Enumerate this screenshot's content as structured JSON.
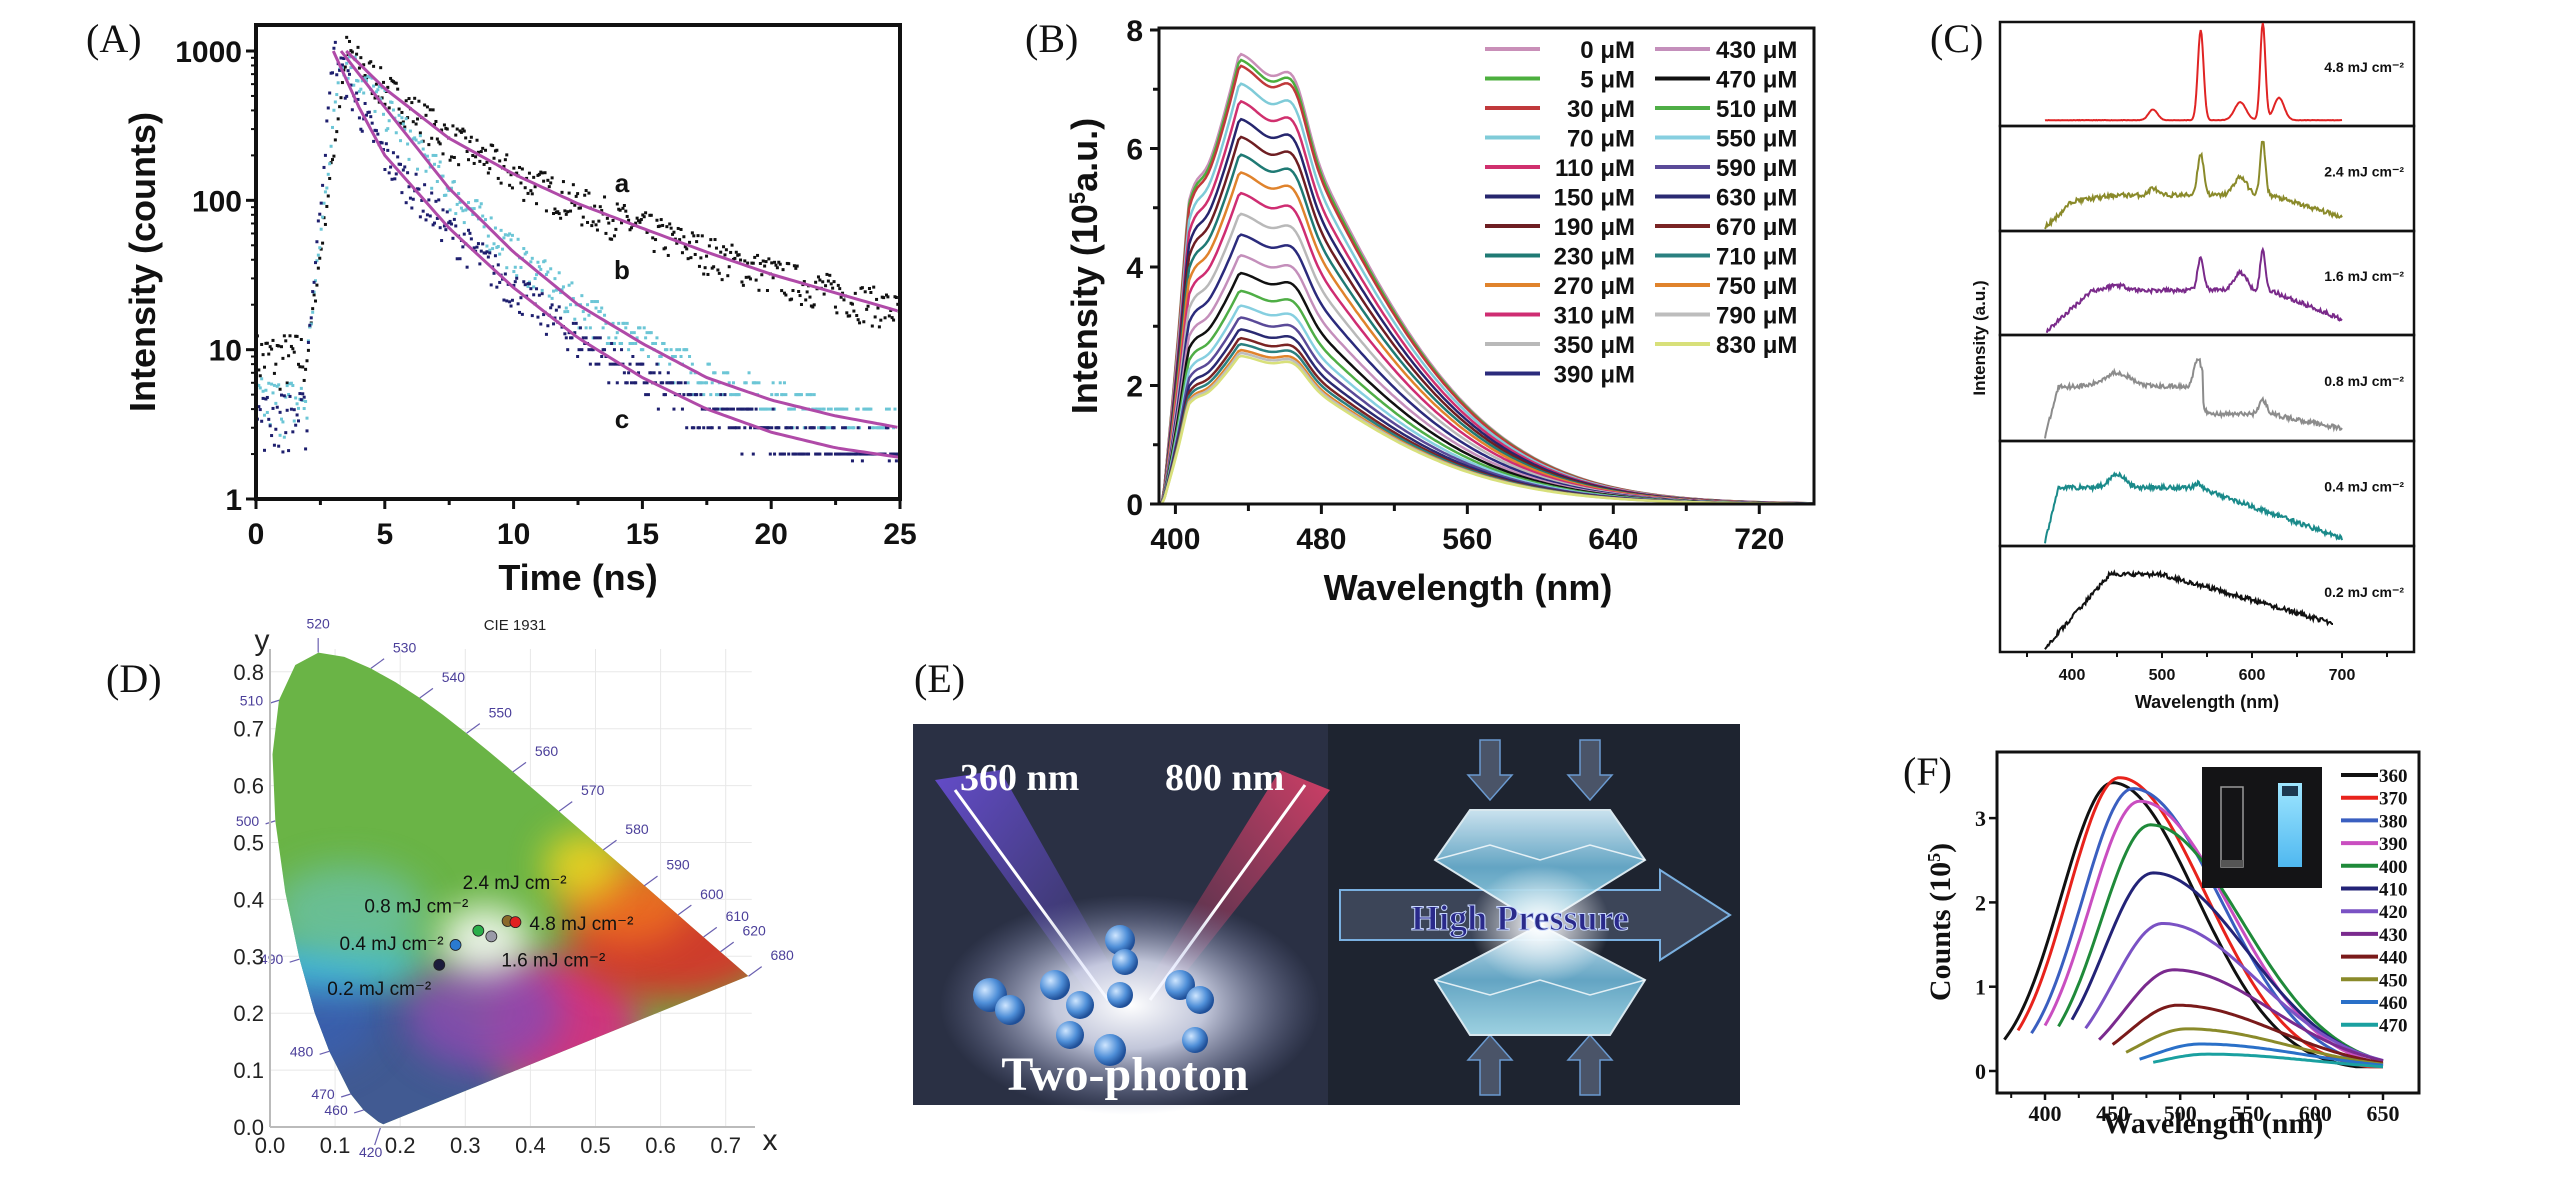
{
  "panels": {
    "A": {
      "label": "(A)"
    },
    "B": {
      "label": "(B)"
    },
    "C": {
      "label": "(C)"
    },
    "D": {
      "label": "(D)"
    },
    "E": {
      "label": "(E)"
    },
    "F": {
      "label": "(F)"
    }
  },
  "illustration_E": {
    "left_beam_label": "360 nm",
    "right_beam_label": "800 nm",
    "left_caption": "Two-photon",
    "right_caption": "High Pressure",
    "beam_colors": {
      "left": "#6a4fd8",
      "right": "#e0406a"
    },
    "background": "#1e2430"
  },
  "chart_data": [
    {
      "id": "A",
      "type": "scatter",
      "title": "",
      "xlabel": "Time (ns)",
      "ylabel": "Intensity (counts)",
      "xlim": [
        0,
        25
      ],
      "ylim": [
        1,
        1000
      ],
      "yscale": "log",
      "xticks": [
        "0",
        "5",
        "10",
        "15",
        "20",
        "25"
      ],
      "yticks": [
        "1",
        "10",
        "100",
        "1000"
      ],
      "series": [
        {
          "name": "a",
          "color": "#111111",
          "fit_color": "#b04aa8",
          "peak_time": 3.5,
          "peak": 1000,
          "fast_tau": 1.6,
          "slow_tau": 6.8,
          "fast_frac": 0.55,
          "baseline": 10,
          "x_fit": [
            3.5,
            5,
            7.5,
            10,
            12.5,
            15,
            17.5,
            20,
            22.5,
            25
          ],
          "y_fit": [
            1000,
            560,
            260,
            150,
            95,
            65,
            45,
            32,
            24,
            18
          ]
        },
        {
          "name": "b",
          "color": "#6cc6d6",
          "fit_color": "#b04aa8",
          "peak_time": 3.3,
          "peak": 1000,
          "x_fit": [
            3.3,
            5,
            7.5,
            10,
            12.5,
            15,
            17.5,
            20,
            22.5,
            25
          ],
          "y_fit": [
            1000,
            420,
            120,
            45,
            20,
            11,
            6.5,
            4.6,
            3.6,
            3.0
          ]
        },
        {
          "name": "c",
          "color": "#1e1f6e",
          "fit_color": "#b04aa8",
          "peak_time": 3.0,
          "peak": 1000,
          "x_fit": [
            3.0,
            4,
            5,
            7.5,
            10,
            12.5,
            15,
            17.5,
            20,
            22.5,
            25
          ],
          "y_fit": [
            1000,
            420,
            200,
            65,
            26,
            12,
            6.5,
            4.0,
            2.8,
            2.2,
            1.9
          ]
        }
      ],
      "annotations": [
        "a",
        "b",
        "c"
      ]
    },
    {
      "id": "B",
      "type": "line",
      "title": "",
      "xlabel": "Wavelength (nm)",
      "ylabel": "Intensity (10⁵a.u.)",
      "ylabel_main": "Intensity (10",
      "ylabel_sup": "5",
      "ylabel_tail": "a.u.)",
      "xlim": [
        391,
        750
      ],
      "ylim": [
        0,
        8
      ],
      "xticks": [
        "400",
        "480",
        "560",
        "640",
        "720"
      ],
      "yticks": [
        "0",
        "2",
        "4",
        "6",
        "8"
      ],
      "legend_position": "top-right",
      "series": [
        {
          "name": "0 μM",
          "color": "#c98fb8",
          "peak": 7.6
        },
        {
          "name": "5 μM",
          "color": "#4caf3e",
          "peak": 7.5
        },
        {
          "name": "30 μM",
          "color": "#c0393b",
          "peak": 7.4
        },
        {
          "name": "70 μM",
          "color": "#7fcbd8",
          "peak": 7.1
        },
        {
          "name": "110 μM",
          "color": "#d0306e",
          "peak": 6.8
        },
        {
          "name": "150 μM",
          "color": "#26266e",
          "peak": 6.5
        },
        {
          "name": "190 μM",
          "color": "#6e1e22",
          "peak": 6.2
        },
        {
          "name": "230 μM",
          "color": "#1f7a74",
          "peak": 5.9
        },
        {
          "name": "270 μM",
          "color": "#e0832c",
          "peak": 5.6
        },
        {
          "name": "310 μM",
          "color": "#cf2d72",
          "peak": 5.25
        },
        {
          "name": "350 μM",
          "color": "#b9b9b9",
          "peak": 4.9
        },
        {
          "name": "390 μM",
          "color": "#2b2b7c",
          "peak": 4.55
        },
        {
          "name": "430 μM",
          "color": "#c48fbb",
          "peak": 4.2
        },
        {
          "name": "470 μM",
          "color": "#111111",
          "peak": 3.9
        },
        {
          "name": "510 μM",
          "color": "#4fae46",
          "peak": 3.6
        },
        {
          "name": "550 μM",
          "color": "#86cfe0",
          "peak": 3.35
        },
        {
          "name": "590 μM",
          "color": "#5a4a98",
          "peak": 3.15
        },
        {
          "name": "630 μM",
          "color": "#2a2a72",
          "peak": 2.95
        },
        {
          "name": "670 μM",
          "color": "#7a2424",
          "peak": 2.8
        },
        {
          "name": "710 μM",
          "color": "#2a8080",
          "peak": 2.7
        },
        {
          "name": "750 μM",
          "color": "#e0832c",
          "peak": 2.6
        },
        {
          "name": "790 μM",
          "color": "#bdbdbd",
          "peak": 2.55
        },
        {
          "name": "830 μM",
          "color": "#d8e07a",
          "peak": 2.5
        }
      ],
      "peak_wavelength": 435,
      "shoulders_nm": [
        410,
        465
      ]
    },
    {
      "id": "C",
      "type": "line",
      "title": "",
      "xlabel": "Wavelength (nm)",
      "ylabel": "Intensity (a.u.)",
      "xlim": [
        320,
        780
      ],
      "xticks": [
        "400",
        "500",
        "600",
        "700"
      ],
      "stacked": true,
      "series": [
        {
          "name": "4.8 mJ cm⁻²",
          "color": "#e02424",
          "x_range": [
            370,
            700
          ],
          "peaks_nm": [
            490,
            543,
            587,
            612,
            630
          ]
        },
        {
          "name": "2.4 mJ cm⁻²",
          "color": "#8a8a2a",
          "x_range": [
            370,
            700
          ],
          "peaks_nm": [
            490,
            543,
            587,
            612
          ]
        },
        {
          "name": "1.6 mJ cm⁻²",
          "color": "#7a2a8a",
          "x_range": [
            372,
            700
          ],
          "peaks_nm": [
            543,
            587,
            612
          ]
        },
        {
          "name": "0.8 mJ cm⁻²",
          "color": "#8c8c8c",
          "x_range": [
            370,
            700
          ],
          "peaks_nm": [
            450,
            543,
            612
          ]
        },
        {
          "name": "0.4 mJ cm⁻²",
          "color": "#1a8a8a",
          "x_range": [
            370,
            700
          ],
          "peaks_nm": [
            400,
            450,
            540
          ]
        },
        {
          "name": "0.2 mJ cm⁻²",
          "color": "#111111",
          "x_range": [
            370,
            690
          ],
          "peaks_nm": [
            440
          ]
        }
      ]
    },
    {
      "id": "D",
      "type": "scatter",
      "title": "CIE 1931",
      "xlabel": "x",
      "ylabel": "y",
      "xlim": [
        0,
        0.75
      ],
      "ylim": [
        0,
        0.85
      ],
      "xticks": [
        "0.0",
        "0.1",
        "0.2",
        "0.3",
        "0.4",
        "0.5",
        "0.6",
        "0.7"
      ],
      "yticks": [
        "0.0",
        "0.1",
        "0.2",
        "0.3",
        "0.4",
        "0.5",
        "0.6",
        "0.7",
        "0.8"
      ],
      "locus_labels": [
        "420",
        "460",
        "470",
        "480",
        "490",
        "500",
        "510",
        "520",
        "530",
        "540",
        "550",
        "560",
        "570",
        "580",
        "590",
        "600",
        "610",
        "620",
        "680"
      ],
      "points": [
        {
          "label": "0.2 mJ cm⁻²",
          "x": 0.26,
          "y": 0.285,
          "color": "#1c1c3c"
        },
        {
          "label": "0.4 mJ cm⁻²",
          "x": 0.285,
          "y": 0.32,
          "color": "#2a7ad0"
        },
        {
          "label": "0.8 mJ cm⁻²",
          "x": 0.32,
          "y": 0.345,
          "color": "#2aae4a"
        },
        {
          "label": "1.6 mJ cm⁻²",
          "x": 0.34,
          "y": 0.335,
          "color": "#9a9aa8"
        },
        {
          "label": "2.4 mJ cm⁻²",
          "x": 0.365,
          "y": 0.362,
          "color": "#8a6a2a"
        },
        {
          "label": "4.8 mJ cm⁻²",
          "x": 0.377,
          "y": 0.36,
          "color": "#e02020"
        }
      ]
    },
    {
      "id": "F",
      "type": "line",
      "title": "",
      "xlabel": "Wavelength (nm)",
      "ylabel": "Counts (10⁵)",
      "ylabel_main": "Counts (10",
      "ylabel_sup": "5",
      "ylabel_tail": ")",
      "xlim": [
        365,
        675
      ],
      "ylim": [
        -0.3,
        3.7
      ],
      "xticks": [
        "400",
        "450",
        "500",
        "550",
        "600",
        "650"
      ],
      "yticks": [
        "0",
        "1",
        "2",
        "3"
      ],
      "legend_position": "top-right",
      "series": [
        {
          "name": "360",
          "color": "#111111",
          "start": 370,
          "peak_nm": 450,
          "peak": 3.42
        },
        {
          "name": "370",
          "color": "#e8231c",
          "start": 380,
          "peak_nm": 455,
          "peak": 3.48
        },
        {
          "name": "380",
          "color": "#3a5fc0",
          "start": 390,
          "peak_nm": 465,
          "peak": 3.35
        },
        {
          "name": "390",
          "color": "#c94ec0",
          "start": 400,
          "peak_nm": 470,
          "peak": 3.2
        },
        {
          "name": "400",
          "color": "#1f8a3a",
          "start": 410,
          "peak_nm": 478,
          "peak": 2.92
        },
        {
          "name": "410",
          "color": "#232377",
          "start": 420,
          "peak_nm": 480,
          "peak": 2.35
        },
        {
          "name": "420",
          "color": "#7a52c4",
          "start": 430,
          "peak_nm": 487,
          "peak": 1.75
        },
        {
          "name": "430",
          "color": "#7a2a8e",
          "start": 440,
          "peak_nm": 495,
          "peak": 1.2
        },
        {
          "name": "440",
          "color": "#7a1a1a",
          "start": 450,
          "peak_nm": 498,
          "peak": 0.78
        },
        {
          "name": "450",
          "color": "#8a8a2a",
          "start": 460,
          "peak_nm": 505,
          "peak": 0.5
        },
        {
          "name": "460",
          "color": "#2a70c8",
          "start": 470,
          "peak_nm": 515,
          "peak": 0.32
        },
        {
          "name": "470",
          "color": "#1aa0a0",
          "start": 480,
          "peak_nm": 520,
          "peak": 0.2
        }
      ],
      "inset": "cuvette photos (dark, blue glow)"
    }
  ]
}
